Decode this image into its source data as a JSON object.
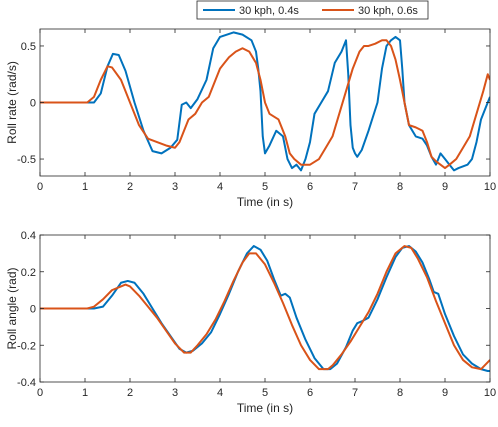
{
  "chart_data": [
    {
      "type": "line",
      "xlabel": "Time (in s)",
      "ylabel": "Roll rate (rad/s)",
      "xlim": [
        0,
        10
      ],
      "ylim": [
        -0.65,
        0.65
      ],
      "xticks": [
        0,
        1,
        2,
        3,
        4,
        5,
        6,
        7,
        8,
        9,
        10
      ],
      "yticks": [
        -0.5,
        0,
        0.5
      ],
      "ytick_labels": [
        "-0.5",
        "0",
        "0.5"
      ],
      "grid": false,
      "legend": {
        "placement": "top-center",
        "entries": [
          "30 kph, 0.4s",
          "30 kph, 0.6s"
        ]
      },
      "series": [
        {
          "name": "30 kph, 0.4s",
          "color": "#0072BD",
          "x": [
            0,
            1.2,
            1.35,
            1.5,
            1.62,
            1.75,
            1.9,
            2.1,
            2.3,
            2.5,
            2.7,
            2.9,
            3.05,
            3.15,
            3.25,
            3.35,
            3.5,
            3.7,
            3.85,
            4.0,
            4.15,
            4.3,
            4.5,
            4.7,
            4.8,
            4.85,
            4.9,
            4.95,
            5.0,
            5.1,
            5.25,
            5.4,
            5.5,
            5.6,
            5.7,
            5.8,
            5.9,
            6.0,
            6.1,
            6.25,
            6.4,
            6.55,
            6.7,
            6.8,
            6.85,
            6.9,
            6.95,
            7.0,
            7.05,
            7.15,
            7.3,
            7.5,
            7.6,
            7.7,
            7.8,
            7.9,
            8.0,
            8.05,
            8.1,
            8.2,
            8.35,
            8.5,
            8.6,
            8.7,
            8.8,
            8.9,
            9.0,
            9.1,
            9.2,
            9.3,
            9.5,
            9.6,
            9.7,
            9.8,
            9.9,
            10.0
          ],
          "values": [
            0,
            0,
            0.08,
            0.32,
            0.43,
            0.42,
            0.28,
            0.0,
            -0.25,
            -0.43,
            -0.45,
            -0.4,
            -0.33,
            -0.02,
            0.0,
            -0.05,
            0.03,
            0.2,
            0.48,
            0.58,
            0.6,
            0.62,
            0.6,
            0.55,
            0.45,
            0.3,
            0.1,
            -0.3,
            -0.45,
            -0.38,
            -0.25,
            -0.3,
            -0.5,
            -0.58,
            -0.55,
            -0.6,
            -0.5,
            -0.35,
            -0.1,
            0.0,
            0.1,
            0.35,
            0.45,
            0.55,
            0.25,
            -0.2,
            -0.4,
            -0.45,
            -0.48,
            -0.42,
            -0.25,
            0.0,
            0.3,
            0.5,
            0.55,
            0.58,
            0.55,
            0.3,
            0.0,
            -0.2,
            -0.3,
            -0.32,
            -0.38,
            -0.48,
            -0.55,
            -0.45,
            -0.5,
            -0.55,
            -0.6,
            -0.58,
            -0.55,
            -0.5,
            -0.35,
            -0.15,
            -0.05,
            0.05
          ]
        },
        {
          "name": "30 kph, 0.6s",
          "color": "#D95319",
          "x": [
            0,
            1.05,
            1.2,
            1.35,
            1.5,
            1.6,
            1.8,
            2.0,
            2.2,
            2.4,
            2.6,
            2.8,
            3.0,
            3.1,
            3.2,
            3.3,
            3.45,
            3.6,
            3.75,
            3.9,
            4.0,
            4.1,
            4.2,
            4.35,
            4.5,
            4.65,
            4.8,
            4.9,
            5.0,
            5.1,
            5.3,
            5.45,
            5.55,
            5.65,
            5.8,
            6.0,
            6.2,
            6.35,
            6.5,
            6.65,
            6.8,
            6.95,
            7.1,
            7.2,
            7.3,
            7.45,
            7.6,
            7.7,
            7.8,
            7.9,
            8.0,
            8.1,
            8.2,
            8.35,
            8.5,
            8.6,
            8.7,
            8.8,
            8.9,
            9.0,
            9.1,
            9.25,
            9.4,
            9.55,
            9.7,
            9.85,
            9.95,
            10.0
          ],
          "values": [
            0,
            0,
            0.05,
            0.2,
            0.32,
            0.31,
            0.2,
            0.0,
            -0.2,
            -0.32,
            -0.35,
            -0.38,
            -0.4,
            -0.35,
            -0.25,
            -0.15,
            -0.1,
            0.0,
            0.05,
            0.2,
            0.3,
            0.35,
            0.4,
            0.45,
            0.48,
            0.45,
            0.35,
            0.2,
            0.0,
            -0.1,
            -0.15,
            -0.3,
            -0.45,
            -0.5,
            -0.55,
            -0.55,
            -0.5,
            -0.4,
            -0.3,
            -0.1,
            0.1,
            0.3,
            0.45,
            0.5,
            0.5,
            0.52,
            0.55,
            0.55,
            0.5,
            0.38,
            0.2,
            0.0,
            -0.2,
            -0.22,
            -0.25,
            -0.35,
            -0.48,
            -0.52,
            -0.55,
            -0.58,
            -0.55,
            -0.5,
            -0.4,
            -0.3,
            -0.1,
            0.1,
            0.25,
            0.2
          ]
        }
      ]
    },
    {
      "type": "line",
      "xlabel": "Time (in s)",
      "ylabel": "Roll angle (rad)",
      "xlim": [
        0,
        10
      ],
      "ylim": [
        -0.4,
        0.4
      ],
      "xticks": [
        0,
        1,
        2,
        3,
        4,
        5,
        6,
        7,
        8,
        9,
        10
      ],
      "yticks": [
        -0.4,
        -0.2,
        0,
        0.2,
        0.4
      ],
      "ytick_labels": [
        "-0.4",
        "-0.2",
        "0",
        "0.2",
        "0.4"
      ],
      "grid": false,
      "series": [
        {
          "name": "30 kph, 0.4s",
          "color": "#0072BD",
          "x": [
            0,
            1.2,
            1.4,
            1.6,
            1.8,
            1.95,
            2.1,
            2.3,
            2.5,
            2.7,
            2.9,
            3.1,
            3.25,
            3.4,
            3.6,
            3.8,
            4.0,
            4.2,
            4.4,
            4.6,
            4.75,
            4.9,
            5.05,
            5.2,
            5.35,
            5.45,
            5.55,
            5.7,
            5.9,
            6.1,
            6.3,
            6.45,
            6.6,
            6.8,
            6.95,
            7.05,
            7.15,
            7.3,
            7.5,
            7.7,
            7.9,
            8.05,
            8.2,
            8.35,
            8.5,
            8.65,
            8.75,
            8.85,
            9.0,
            9.2,
            9.4,
            9.6,
            9.8,
            9.95,
            10.0
          ],
          "values": [
            0,
            0,
            0.01,
            0.07,
            0.14,
            0.15,
            0.14,
            0.08,
            0.0,
            -0.08,
            -0.15,
            -0.22,
            -0.24,
            -0.23,
            -0.19,
            -0.13,
            -0.03,
            0.08,
            0.2,
            0.3,
            0.34,
            0.32,
            0.26,
            0.16,
            0.07,
            0.08,
            0.06,
            -0.05,
            -0.17,
            -0.27,
            -0.33,
            -0.33,
            -0.3,
            -0.21,
            -0.12,
            -0.08,
            -0.07,
            -0.05,
            0.05,
            0.17,
            0.28,
            0.33,
            0.34,
            0.31,
            0.25,
            0.16,
            0.09,
            0.08,
            -0.03,
            -0.15,
            -0.25,
            -0.3,
            -0.33,
            -0.34,
            -0.34
          ]
        },
        {
          "name": "30 kph, 0.6s",
          "color": "#D95319",
          "x": [
            0,
            1.05,
            1.2,
            1.4,
            1.6,
            1.8,
            1.9,
            2.0,
            2.2,
            2.4,
            2.6,
            2.8,
            3.0,
            3.2,
            3.35,
            3.5,
            3.7,
            3.9,
            4.1,
            4.3,
            4.5,
            4.65,
            4.8,
            5.0,
            5.2,
            5.4,
            5.6,
            5.8,
            6.0,
            6.2,
            6.4,
            6.5,
            6.7,
            6.9,
            7.1,
            7.3,
            7.5,
            7.7,
            7.9,
            8.1,
            8.25,
            8.4,
            8.6,
            8.8,
            9.0,
            9.2,
            9.4,
            9.6,
            9.8,
            10.0
          ],
          "values": [
            0,
            0,
            0.01,
            0.05,
            0.1,
            0.12,
            0.13,
            0.12,
            0.07,
            0.01,
            -0.05,
            -0.12,
            -0.19,
            -0.24,
            -0.24,
            -0.2,
            -0.14,
            -0.06,
            0.04,
            0.15,
            0.25,
            0.3,
            0.3,
            0.24,
            0.14,
            0.03,
            -0.09,
            -0.2,
            -0.28,
            -0.33,
            -0.33,
            -0.31,
            -0.25,
            -0.18,
            -0.1,
            -0.02,
            0.08,
            0.2,
            0.3,
            0.34,
            0.33,
            0.27,
            0.17,
            0.04,
            -0.08,
            -0.2,
            -0.28,
            -0.32,
            -0.33,
            -0.28
          ]
        }
      ]
    }
  ]
}
